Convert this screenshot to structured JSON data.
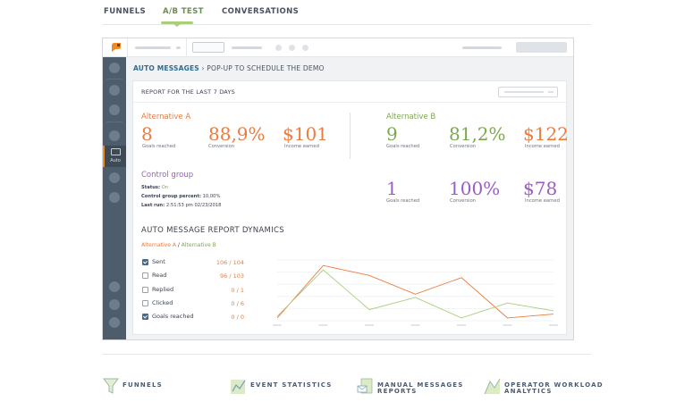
{
  "top_tabs": [
    {
      "label": "FUNNELS"
    },
    {
      "label": "A/B TEST"
    },
    {
      "label": "CONVERSATIONS"
    }
  ],
  "sidebar": {
    "active_label": "Auto"
  },
  "breadcrumb": {
    "root": "AUTO MESSAGES",
    "current": "› POP-UP TO SCHEDULE THE DEMO"
  },
  "report": {
    "title": "REPORT FOR THE LAST 7 DAYS",
    "alternative_a": {
      "name": "Alternative A",
      "goals": "8",
      "goals_label": "Goals reached",
      "conversion": "88,9%",
      "conversion_label": "Conversion",
      "income": "$101",
      "income_label": "Income earned"
    },
    "alternative_b": {
      "name": "Alternative B",
      "goals": "9",
      "goals_label": "Goals reached",
      "conversion": "81,2%",
      "conversion_label": "Conversion",
      "income": "$122",
      "income_label": "Income earned"
    },
    "control_group": {
      "name": "Control group",
      "status_label": "Status:",
      "status_value": "On",
      "percent_label": "Control group percent:",
      "percent_value": "10,00%",
      "last_run_label": "Last run:",
      "last_run_value": "2:51:53 pm 02/23/2018",
      "goals": "1",
      "goals_label": "Goals reached",
      "conversion": "100%",
      "conversion_label": "Conversion",
      "income": "$78",
      "income_label": "Income earned"
    }
  },
  "dynamics": {
    "title": "AUTO MESSAGE REPORT DYNAMICS",
    "legend_a": "Alternative A",
    "legend_sep": " / ",
    "legend_b": "Alternative B",
    "metrics": [
      {
        "label": "Sent",
        "checked": true,
        "a": "106",
        "sep": " / ",
        "b": "104"
      },
      {
        "label": "Read",
        "checked": false,
        "a": "96",
        "sep": " / ",
        "b": "103"
      },
      {
        "label": "Replied",
        "checked": false,
        "a": "0",
        "sep": " / ",
        "b": "1"
      },
      {
        "label": "Clicked",
        "checked": false,
        "a": "0",
        "sep": " / ",
        "b": "6"
      },
      {
        "label": "Goals reached",
        "checked": true,
        "a": "0",
        "sep": " / ",
        "b": "0"
      }
    ]
  },
  "chart_data": {
    "type": "line",
    "x": [
      1,
      2,
      3,
      4,
      5,
      6,
      7
    ],
    "series": [
      {
        "values": [
          5,
          100,
          82,
          48,
          78,
          5,
          12
        ],
        "color": "#ec7b3c"
      },
      {
        "values": [
          8,
          92,
          20,
          42,
          5,
          32,
          18
        ],
        "color": "#a6cf7a"
      }
    ],
    "ylim": [
      0,
      110
    ],
    "grid": true
  },
  "footer": [
    {
      "label_lines": [
        "FUNNELS"
      ],
      "icon": "funnel-icon"
    },
    {
      "label_lines": [
        "EVENT STATISTICS"
      ],
      "icon": "bar-chart-icon"
    },
    {
      "label_lines": [
        "MANUAL MESSAGES",
        "REPORTS"
      ],
      "icon": "envelope-report-icon"
    },
    {
      "label_lines": [
        "OPERATOR WORKLOAD",
        "ANALYTICS"
      ],
      "icon": "workload-chart-icon"
    }
  ],
  "colors": {
    "accent_green": "#a9cf7a",
    "alt_a": "#ec7b3c",
    "alt_b": "#79a94a",
    "control": "#9b5cc4",
    "sidebar": "#4e5d6b"
  }
}
